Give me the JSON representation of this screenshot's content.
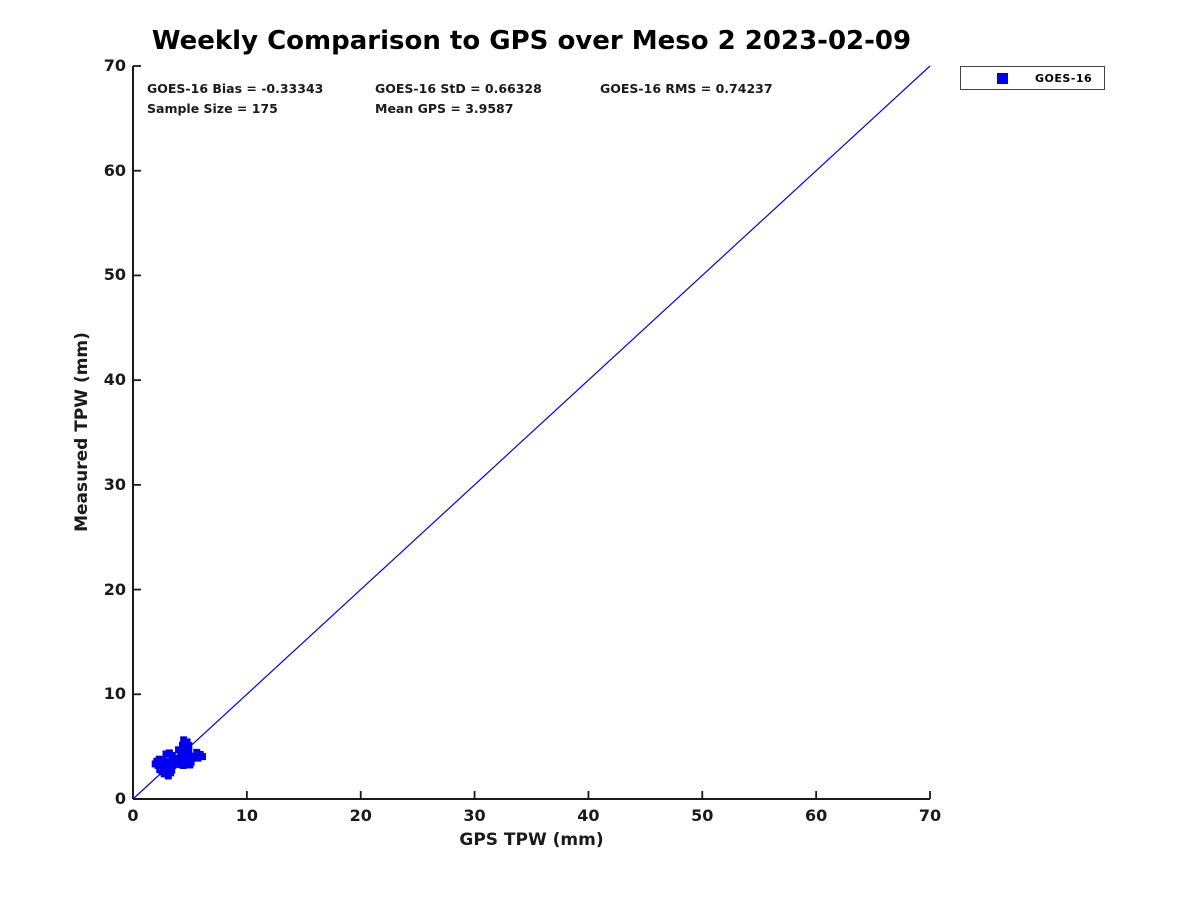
{
  "figure": {
    "background": "#ffffff",
    "title": "Weekly Comparison to GPS over Meso 2 2023-02-09"
  },
  "annotations": {
    "bias": "GOES-16 Bias = -0.33343",
    "std": "GOES-16 StD = 0.66328",
    "rms": "GOES-16 RMS = 0.74237",
    "sample_size": "Sample Size = 175",
    "mean_gps": "Mean GPS = 3.9587"
  },
  "axes": {
    "x": {
      "label": "GPS TPW (mm)",
      "tick_values": [
        0,
        10,
        20,
        30,
        40,
        50,
        60,
        70
      ]
    },
    "y": {
      "label": "Measured TPW (mm)",
      "tick_values": [
        0,
        10,
        20,
        30,
        40,
        50,
        60,
        70
      ]
    }
  },
  "legend": {
    "items": [
      {
        "label": "GOES-16",
        "marker": "filled-square",
        "color": "#0000ee"
      }
    ]
  },
  "colors": {
    "marker_blue": "#0000ee",
    "line_blue": "#0000dd",
    "axis": "#1a1a1a",
    "text": "#000000"
  },
  "chart_data": {
    "type": "scatter",
    "title": "Weekly Comparison to GPS over Meso 2 2023-02-09",
    "xlabel": "GPS TPW (mm)",
    "ylabel": "Measured TPW (mm)",
    "xlim": [
      0,
      70
    ],
    "ylim": [
      0,
      70
    ],
    "x_ticks": [
      0,
      10,
      20,
      30,
      40,
      50,
      60,
      70
    ],
    "y_ticks": [
      0,
      10,
      20,
      30,
      40,
      50,
      60,
      70
    ],
    "grid": false,
    "legend_position": "outside-top-right",
    "stats": {
      "goes16_bias": -0.33343,
      "goes16_std": 0.66328,
      "goes16_rms": 0.74237,
      "sample_size": 175,
      "mean_gps": 3.9587
    },
    "reference_line": {
      "type": "identity",
      "from": [
        0,
        0
      ],
      "to": [
        70,
        70
      ],
      "color": "#0000dd",
      "width": 1.2
    },
    "series": [
      {
        "name": "GOES-16",
        "marker": "square",
        "marker_size_px": 7,
        "color": "#0000ee",
        "points": [
          [
            4.45,
            5.65
          ],
          [
            4.75,
            5.45
          ],
          [
            4.35,
            5.15
          ],
          [
            4.65,
            4.95
          ],
          [
            4.9,
            5.1
          ],
          [
            4.0,
            4.7
          ],
          [
            4.3,
            4.5
          ],
          [
            4.6,
            4.4
          ],
          [
            4.9,
            4.6
          ],
          [
            4.2,
            4.2
          ],
          [
            4.5,
            4.05
          ],
          [
            4.8,
            4.2
          ],
          [
            5.6,
            4.45
          ],
          [
            5.9,
            4.25
          ],
          [
            6.1,
            4.05
          ],
          [
            5.7,
            3.9
          ],
          [
            5.4,
            4.1
          ],
          [
            3.85,
            3.9
          ],
          [
            4.05,
            3.6
          ],
          [
            4.3,
            3.7
          ],
          [
            4.6,
            3.5
          ],
          [
            4.85,
            3.7
          ],
          [
            5.1,
            3.5
          ],
          [
            4.1,
            3.3
          ],
          [
            4.4,
            3.2
          ],
          [
            4.7,
            3.3
          ],
          [
            5.0,
            3.25
          ],
          [
            1.95,
            3.35
          ],
          [
            2.1,
            3.6
          ],
          [
            2.3,
            3.8
          ],
          [
            2.2,
            3.2
          ],
          [
            2.45,
            3.45
          ],
          [
            2.6,
            3.7
          ],
          [
            2.75,
            3.5
          ],
          [
            2.5,
            3.1
          ],
          [
            2.7,
            3.25
          ],
          [
            2.9,
            3.45
          ],
          [
            3.1,
            3.6
          ],
          [
            3.0,
            3.2
          ],
          [
            3.3,
            3.45
          ],
          [
            3.2,
            3.0
          ],
          [
            3.5,
            3.2
          ],
          [
            3.65,
            3.5
          ],
          [
            2.9,
            4.3
          ],
          [
            3.2,
            4.4
          ],
          [
            3.45,
            4.15
          ],
          [
            3.7,
            3.75
          ],
          [
            2.35,
            2.8
          ],
          [
            2.55,
            2.6
          ],
          [
            2.75,
            2.4
          ],
          [
            2.95,
            2.6
          ],
          [
            3.1,
            2.2
          ],
          [
            3.3,
            2.5
          ],
          [
            3.0,
            2.9
          ],
          [
            3.4,
            2.75
          ]
        ]
      }
    ]
  }
}
